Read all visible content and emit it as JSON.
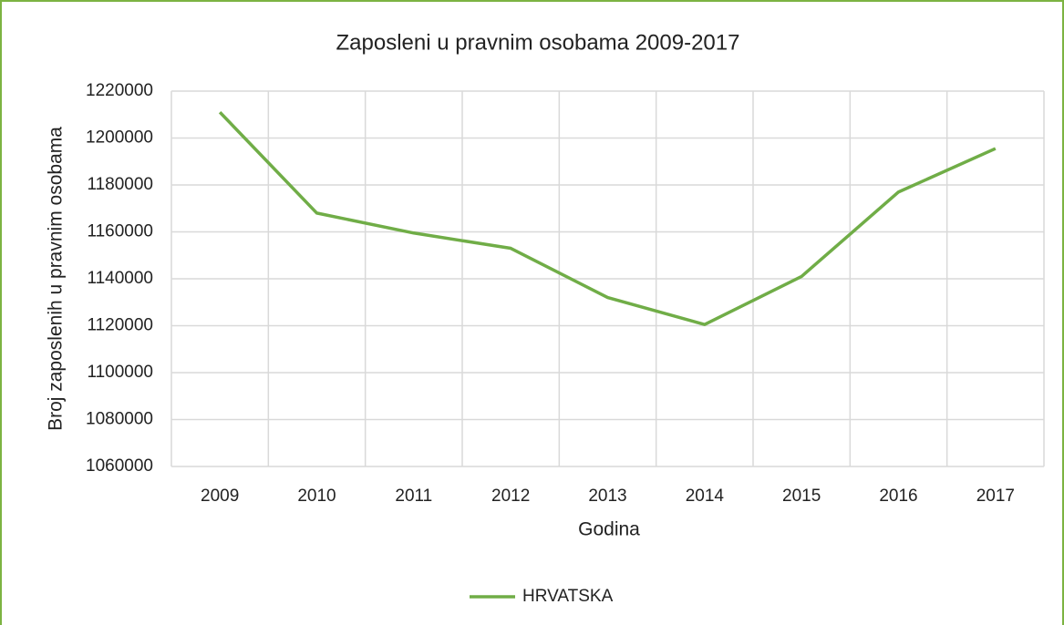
{
  "chart_data": {
    "type": "line",
    "title": "Zaposleni u pravnim osobama 2009-2017",
    "x_label": "Godina",
    "y_label": "Broj zaposlenih u pravnim osobama",
    "categories": [
      "2009",
      "2010",
      "2011",
      "2012",
      "2013",
      "2014",
      "2015",
      "2016",
      "2017"
    ],
    "series": [
      {
        "name": "HRVATSKA",
        "color": "#70ad47",
        "values": [
          1211000,
          1168000,
          1159500,
          1153000,
          1132000,
          1120500,
          1141000,
          1177000,
          1195500
        ]
      }
    ],
    "ylim": [
      1060000,
      1220000
    ],
    "yticks": [
      1060000,
      1080000,
      1100000,
      1120000,
      1140000,
      1160000,
      1180000,
      1200000,
      1220000
    ],
    "grid": true,
    "legend": "bottom"
  }
}
